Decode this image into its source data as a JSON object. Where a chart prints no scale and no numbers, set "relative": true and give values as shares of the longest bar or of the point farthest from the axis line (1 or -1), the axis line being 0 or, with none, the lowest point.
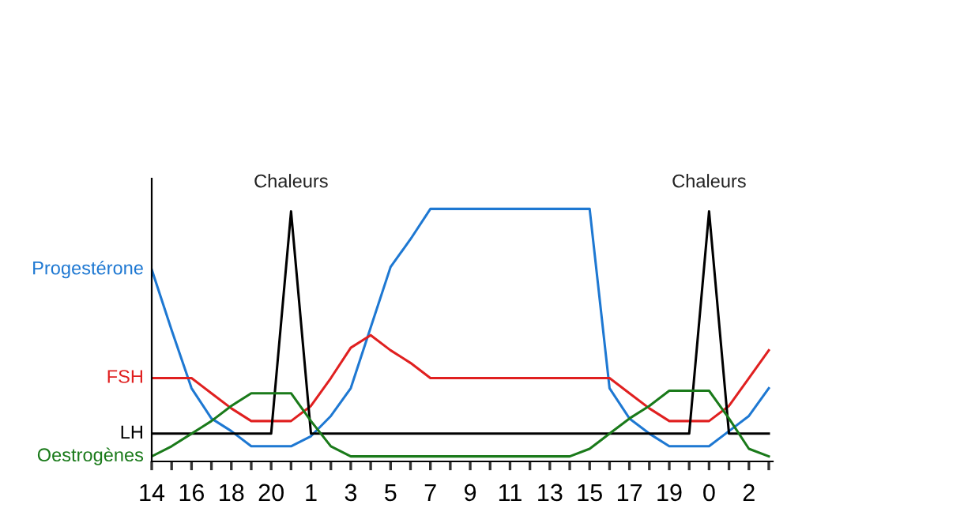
{
  "chart_data": {
    "type": "line",
    "relative": true,
    "legend": false,
    "grid": false,
    "marker": "none",
    "line_style": "solid",
    "categories": [
      "14",
      null,
      "16",
      null,
      "18",
      null,
      "20",
      null,
      "1",
      null,
      "3",
      null,
      "5",
      null,
      "7",
      null,
      "9",
      null,
      "11",
      null,
      "13",
      null,
      "15",
      null,
      "17",
      null,
      "19",
      null,
      "0",
      null,
      "2",
      null
    ],
    "series": [
      {
        "name": "Progestérone",
        "color": "#1e78d2",
        "values": [
          0.76,
          0.52,
          0.29,
          0.17,
          0.12,
          0.06,
          0.06,
          0.06,
          0.1,
          0.18,
          0.29,
          0.53,
          0.77,
          0.88,
          1,
          1,
          1,
          1,
          1,
          1,
          1,
          1,
          1,
          0.29,
          0.17,
          0.11,
          0.06,
          0.06,
          0.06,
          0.12,
          0.18,
          0.29
        ]
      },
      {
        "name": "FSH",
        "color": "#e02020",
        "values": [
          0.33,
          0.33,
          0.33,
          0.27,
          0.21,
          0.16,
          0.16,
          0.16,
          0.22,
          0.33,
          0.45,
          0.5,
          0.44,
          0.39,
          0.33,
          0.33,
          0.33,
          0.33,
          0.33,
          0.33,
          0.33,
          0.33,
          0.33,
          0.33,
          0.27,
          0.21,
          0.16,
          0.16,
          0.16,
          0.22,
          0.33,
          0.44
        ]
      },
      {
        "name": "LH",
        "color": "#000000",
        "values": [
          0.11,
          0.11,
          0.11,
          0.11,
          0.11,
          0.11,
          0.11,
          0.99,
          0.11,
          0.11,
          0.11,
          0.11,
          0.11,
          0.11,
          0.11,
          0.11,
          0.11,
          0.11,
          0.11,
          0.11,
          0.11,
          0.11,
          0.11,
          0.11,
          0.11,
          0.11,
          0.11,
          0.11,
          0.99,
          0.11,
          0.11,
          0.11
        ]
      },
      {
        "name": "Oestrogènes",
        "color": "#1a7a1a",
        "values": [
          0.02,
          0.06,
          0.11,
          0.16,
          0.22,
          0.27,
          0.27,
          0.27,
          0.16,
          0.06,
          0.02,
          0.02,
          0.02,
          0.02,
          0.02,
          0.02,
          0.02,
          0.02,
          0.02,
          0.02,
          0.02,
          0.02,
          0.05,
          0.11,
          0.17,
          0.22,
          0.28,
          0.28,
          0.28,
          0.17,
          0.05,
          0.02
        ]
      }
    ],
    "annotations": [
      "Chaleurs",
      "Chaleurs"
    ]
  }
}
